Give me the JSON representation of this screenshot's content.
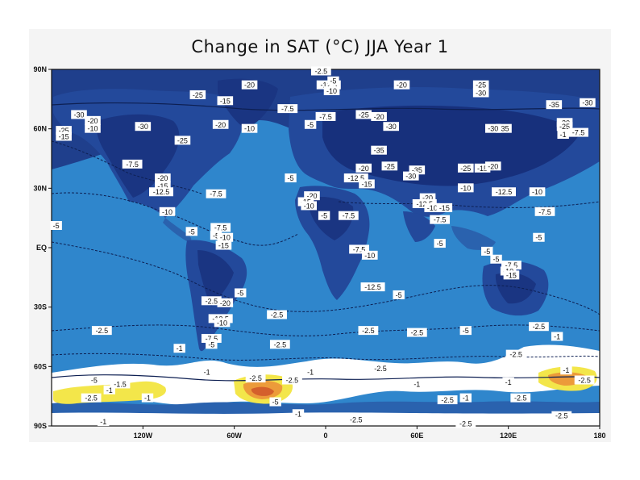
{
  "chart_data": {
    "type": "heatmap",
    "title": "Change in SAT (°C) JJA Year 1",
    "xlabel": "",
    "ylabel": "",
    "xlim": [
      -180,
      180
    ],
    "ylim": [
      -90,
      90
    ],
    "x_ticks": [
      {
        "value": -120,
        "label": "120W"
      },
      {
        "value": -60,
        "label": "60W"
      },
      {
        "value": 0,
        "label": "0"
      },
      {
        "value": 60,
        "label": "60E"
      },
      {
        "value": 120,
        "label": "120E"
      },
      {
        "value": 180,
        "label": "180"
      }
    ],
    "y_ticks": [
      {
        "value": 90,
        "label": "90N"
      },
      {
        "value": 60,
        "label": "60N"
      },
      {
        "value": 30,
        "label": "30N"
      },
      {
        "value": 0,
        "label": "EQ"
      },
      {
        "value": -30,
        "label": "30S"
      },
      {
        "value": -60,
        "label": "60S"
      },
      {
        "value": -90,
        "label": "90S"
      }
    ],
    "color_scale": {
      "ocean": "#2f86cc",
      "land_light": "#2a62ae",
      "land_mid": "#21489a",
      "land_deep": "#17307c",
      "neutral": "#ffffff",
      "warm1": "#f3e64a",
      "warm2": "#ec9b3a",
      "warm3": "#d4602c"
    },
    "contour_labels": [
      {
        "lon": -3,
        "lat": 89,
        "text": "-2.5"
      },
      {
        "lon": 2,
        "lat": 82,
        "text": "-12.5"
      },
      {
        "lon": 5,
        "lat": 84,
        "text": "-5"
      },
      {
        "lon": 4,
        "lat": 79,
        "text": "-10"
      },
      {
        "lon": -50,
        "lat": 82,
        "text": "-20"
      },
      {
        "lon": -84,
        "lat": 77,
        "text": "-25"
      },
      {
        "lon": -66,
        "lat": 74,
        "text": "-15"
      },
      {
        "lon": 50,
        "lat": 82,
        "text": "-20"
      },
      {
        "lon": 102,
        "lat": 82,
        "text": "-25"
      },
      {
        "lon": 102,
        "lat": 78,
        "text": "-30"
      },
      {
        "lon": 150,
        "lat": 72,
        "text": "-35"
      },
      {
        "lon": 172,
        "lat": 73,
        "text": "-30"
      },
      {
        "lon": -162,
        "lat": 67,
        "text": "-30"
      },
      {
        "lon": -153,
        "lat": 64,
        "text": "-20"
      },
      {
        "lon": -153,
        "lat": 60,
        "text": "-10"
      },
      {
        "lon": -172,
        "lat": 59,
        "text": "-25"
      },
      {
        "lon": -172,
        "lat": 56,
        "text": "-15"
      },
      {
        "lon": -120,
        "lat": 61,
        "text": "-30"
      },
      {
        "lon": -69,
        "lat": 62,
        "text": "-20"
      },
      {
        "lon": -50,
        "lat": 60,
        "text": "-10"
      },
      {
        "lon": -25,
        "lat": 70,
        "text": "-7.5"
      },
      {
        "lon": -10,
        "lat": 62,
        "text": "-5"
      },
      {
        "lon": 0,
        "lat": 66,
        "text": "-7.5"
      },
      {
        "lon": 25,
        "lat": 67,
        "text": "-25"
      },
      {
        "lon": 35,
        "lat": 66,
        "text": "-20"
      },
      {
        "lon": 43,
        "lat": 61,
        "text": "-30"
      },
      {
        "lon": 117,
        "lat": 60,
        "text": "-35"
      },
      {
        "lon": 110,
        "lat": 60,
        "text": "-30"
      },
      {
        "lon": 157,
        "lat": 63,
        "text": "-20"
      },
      {
        "lon": 157,
        "lat": 61,
        "text": "-25"
      },
      {
        "lon": 156,
        "lat": 57,
        "text": "-1"
      },
      {
        "lon": 166,
        "lat": 58,
        "text": "-7.5"
      },
      {
        "lon": -94,
        "lat": 54,
        "text": "-25"
      },
      {
        "lon": 35,
        "lat": 49,
        "text": "-35"
      },
      {
        "lon": -127,
        "lat": 42,
        "text": "-7.5"
      },
      {
        "lon": -107,
        "lat": 35,
        "text": "-20"
      },
      {
        "lon": -107,
        "lat": 31,
        "text": "-15"
      },
      {
        "lon": -108,
        "lat": 28,
        "text": "-12.5"
      },
      {
        "lon": -72,
        "lat": 27,
        "text": "-7.5"
      },
      {
        "lon": -23,
        "lat": 35,
        "text": "-5"
      },
      {
        "lon": 25,
        "lat": 40,
        "text": "-20"
      },
      {
        "lon": 42,
        "lat": 41,
        "text": "-25"
      },
      {
        "lon": 20,
        "lat": 35,
        "text": "-12.5"
      },
      {
        "lon": 27,
        "lat": 32,
        "text": "-15"
      },
      {
        "lon": 60,
        "lat": 39,
        "text": "-35"
      },
      {
        "lon": 56,
        "lat": 36,
        "text": "-30"
      },
      {
        "lon": 92,
        "lat": 40,
        "text": "-25"
      },
      {
        "lon": 103,
        "lat": 40,
        "text": "-15"
      },
      {
        "lon": 110,
        "lat": 41,
        "text": "-20"
      },
      {
        "lon": 92,
        "lat": 30,
        "text": "-10"
      },
      {
        "lon": 117,
        "lat": 28,
        "text": "-12.5"
      },
      {
        "lon": 139,
        "lat": 28,
        "text": "-10"
      },
      {
        "lon": -9,
        "lat": 26,
        "text": "-20"
      },
      {
        "lon": -13,
        "lat": 23,
        "text": "-15"
      },
      {
        "lon": -11,
        "lat": 21,
        "text": "-10"
      },
      {
        "lon": -1,
        "lat": 16,
        "text": "-5"
      },
      {
        "lon": 15,
        "lat": 16,
        "text": "-7.5"
      },
      {
        "lon": 67,
        "lat": 25,
        "text": "-20"
      },
      {
        "lon": 65,
        "lat": 22,
        "text": "-12.5"
      },
      {
        "lon": 70,
        "lat": 20,
        "text": "-10"
      },
      {
        "lon": 78,
        "lat": 20,
        "text": "-15"
      },
      {
        "lon": 75,
        "lat": 14,
        "text": "-7.5"
      },
      {
        "lon": 144,
        "lat": 18,
        "text": "-7.5"
      },
      {
        "lon": -104,
        "lat": 18,
        "text": "-10"
      },
      {
        "lon": -69,
        "lat": 10,
        "text": "-7.5"
      },
      {
        "lon": -72,
        "lat": 6,
        "text": "-5"
      },
      {
        "lon": -66,
        "lat": 5,
        "text": "-10"
      },
      {
        "lon": -88,
        "lat": 8,
        "text": "-5"
      },
      {
        "lon": -177,
        "lat": 11,
        "text": "-5"
      },
      {
        "lon": -67,
        "lat": 1,
        "text": "-15"
      },
      {
        "lon": 75,
        "lat": 2,
        "text": "-5"
      },
      {
        "lon": 140,
        "lat": 5,
        "text": "-5"
      },
      {
        "lon": 22,
        "lat": -1,
        "text": "-7.5"
      },
      {
        "lon": 29,
        "lat": -4,
        "text": "-10"
      },
      {
        "lon": 106,
        "lat": -2,
        "text": "-5"
      },
      {
        "lon": 112,
        "lat": -6,
        "text": "-5"
      },
      {
        "lon": 122,
        "lat": -9,
        "text": "-7.5"
      },
      {
        "lon": 120,
        "lat": -12,
        "text": "-10"
      },
      {
        "lon": 122,
        "lat": -14,
        "text": "-15"
      },
      {
        "lon": 31,
        "lat": -20,
        "text": "-12.5"
      },
      {
        "lon": -56,
        "lat": -23,
        "text": "-5"
      },
      {
        "lon": 48,
        "lat": -24,
        "text": "-5"
      },
      {
        "lon": -75,
        "lat": -27,
        "text": "-2.5"
      },
      {
        "lon": -66,
        "lat": -28,
        "text": "-20"
      },
      {
        "lon": -32,
        "lat": -34,
        "text": "-2.5"
      },
      {
        "lon": -69,
        "lat": -36,
        "text": "-12.5"
      },
      {
        "lon": -68,
        "lat": -38,
        "text": "-10"
      },
      {
        "lon": -147,
        "lat": -42,
        "text": "-2.5"
      },
      {
        "lon": 92,
        "lat": -42,
        "text": "-5"
      },
      {
        "lon": 28,
        "lat": -42,
        "text": "-2.5"
      },
      {
        "lon": 60,
        "lat": -43,
        "text": "-2.5"
      },
      {
        "lon": 140,
        "lat": -40,
        "text": "-2.5"
      },
      {
        "lon": -75,
        "lat": -46,
        "text": "-7.5"
      },
      {
        "lon": -75,
        "lat": -49,
        "text": "-5"
      },
      {
        "lon": -30,
        "lat": -49,
        "text": "-2.5"
      },
      {
        "lon": -96,
        "lat": -51,
        "text": "-1"
      },
      {
        "lon": 152,
        "lat": -45,
        "text": "-1"
      },
      {
        "lon": 125,
        "lat": -54,
        "text": "-2.5"
      },
      {
        "lon": 36,
        "lat": -61,
        "text": "-2.5"
      },
      {
        "lon": -152,
        "lat": -67,
        "text": "-5"
      },
      {
        "lon": -135,
        "lat": -69,
        "text": "-1.5"
      },
      {
        "lon": -142,
        "lat": -72,
        "text": "-1"
      },
      {
        "lon": -154,
        "lat": -76,
        "text": "-2.5"
      },
      {
        "lon": -117,
        "lat": -76,
        "text": "-1"
      },
      {
        "lon": -78,
        "lat": -63,
        "text": "-1"
      },
      {
        "lon": -46,
        "lat": -66,
        "text": "-2.5"
      },
      {
        "lon": -22,
        "lat": -67,
        "text": "-2.5"
      },
      {
        "lon": -10,
        "lat": -63,
        "text": "-1"
      },
      {
        "lon": -33,
        "lat": -78,
        "text": "-5"
      },
      {
        "lon": -18,
        "lat": -84,
        "text": "-1"
      },
      {
        "lon": 60,
        "lat": -69,
        "text": "-1"
      },
      {
        "lon": 80,
        "lat": -77,
        "text": "-2.5"
      },
      {
        "lon": 92,
        "lat": -76,
        "text": "-1"
      },
      {
        "lon": 120,
        "lat": -68,
        "text": "-1"
      },
      {
        "lon": 128,
        "lat": -76,
        "text": "-2.5"
      },
      {
        "lon": 158,
        "lat": -62,
        "text": "-1"
      },
      {
        "lon": 170,
        "lat": -67,
        "text": "-2.5"
      },
      {
        "lon": 155,
        "lat": -85,
        "text": "-2.5"
      },
      {
        "lon": -146,
        "lat": -88,
        "text": "-1"
      },
      {
        "lon": 20,
        "lat": -87,
        "text": "-2.5"
      },
      {
        "lon": 92,
        "lat": -89,
        "text": "-2.5"
      }
    ]
  }
}
